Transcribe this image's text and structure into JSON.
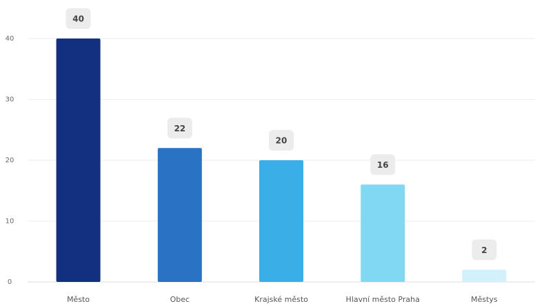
{
  "chart_data": {
    "type": "bar",
    "categories": [
      "Město",
      "Obec",
      "Krajské město",
      "Hlavní město Praha",
      "Městys"
    ],
    "values": [
      40,
      22,
      20,
      16,
      2
    ],
    "colors": [
      "#12307f",
      "#2a72c4",
      "#3aaee6",
      "#80d8f3",
      "#d2f1fb"
    ],
    "ylim": [
      0,
      40
    ],
    "yticks": [
      0,
      10,
      20,
      30,
      40
    ],
    "grid": true
  }
}
